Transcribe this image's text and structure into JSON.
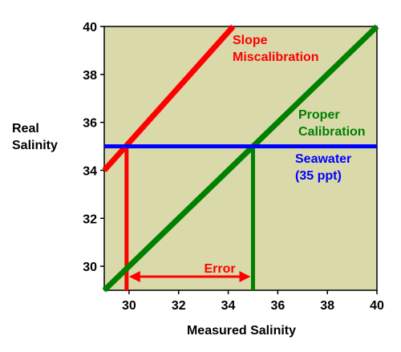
{
  "chart_data": {
    "type": "line",
    "title": "",
    "xlabel": "Measured Salinity",
    "ylabel": [
      "Real",
      "Salinity"
    ],
    "xlim": [
      29,
      40
    ],
    "ylim": [
      29,
      40
    ],
    "x_ticks": [
      "30",
      "32",
      "34",
      "36",
      "38",
      "40"
    ],
    "y_ticks": [
      "30",
      "32",
      "34",
      "36",
      "38",
      "40"
    ],
    "grid": false,
    "plot_background": "#D9D9AA",
    "series": [
      {
        "name": "Slope Miscalibration",
        "label_lines": [
          "Slope",
          "Miscalibration"
        ],
        "color": "#FF0000",
        "x": [
          29,
          34.2
        ],
        "y": [
          34,
          40
        ]
      },
      {
        "name": "Proper Calibration",
        "label_lines": [
          "Proper",
          "Calibration"
        ],
        "color": "#008000",
        "x": [
          29,
          40
        ],
        "y": [
          29,
          40
        ]
      },
      {
        "name": "Seawater (35 ppt)",
        "label_lines": [
          "Seawater",
          "(35 ppt)"
        ],
        "color": "#0000FF",
        "x": [
          29,
          40
        ],
        "y": [
          35,
          35
        ]
      }
    ],
    "drop_lines": [
      {
        "x": 29.9,
        "y_top": 35,
        "color": "#FF0000"
      },
      {
        "x": 35,
        "y_top": 35,
        "color": "#008000"
      }
    ],
    "error_annotation": {
      "text": "Error",
      "from_x": 29.9,
      "to_x": 35,
      "y": 29.5,
      "color": "#FF0000"
    }
  }
}
